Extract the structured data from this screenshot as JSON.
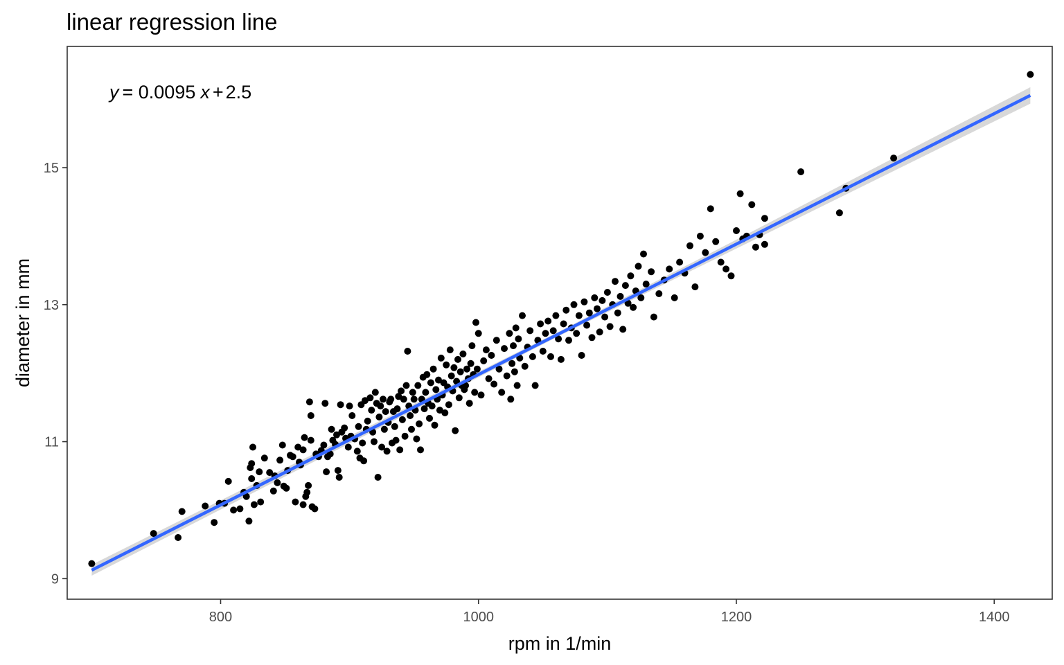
{
  "chart_data": {
    "type": "scatter",
    "title": "linear regression line",
    "xlabel": "rpm in 1/min",
    "ylabel": "diameter in mm",
    "xlim": [
      681,
      1445
    ],
    "ylim": [
      8.7,
      16.77
    ],
    "xticks": [
      800,
      1000,
      1200,
      1400
    ],
    "yticks": [
      9,
      11,
      13,
      15
    ],
    "grid": false,
    "annotation": {
      "var": "y",
      "equals": "= 0.0095",
      "xvar": "x",
      "plus": "+",
      "intercept": "2.5"
    },
    "regression": {
      "slope": 0.00952,
      "intercept": 2.46,
      "x_range": [
        700,
        1428
      ],
      "se_band": 0.08,
      "color": "#3366ff"
    },
    "point_color": "#000000",
    "points": [
      [
        700,
        9.22
      ],
      [
        748,
        9.66
      ],
      [
        767,
        9.6
      ],
      [
        770,
        9.98
      ],
      [
        788,
        10.06
      ],
      [
        795,
        9.82
      ],
      [
        799,
        10.1
      ],
      [
        803,
        10.1
      ],
      [
        806,
        10.42
      ],
      [
        810,
        10.0
      ],
      [
        815,
        10.02
      ],
      [
        818,
        10.26
      ],
      [
        820,
        10.2
      ],
      [
        822,
        9.84
      ],
      [
        823,
        10.62
      ],
      [
        824,
        10.46
      ],
      [
        824,
        10.68
      ],
      [
        825,
        10.92
      ],
      [
        826,
        10.08
      ],
      [
        828,
        10.36
      ],
      [
        830,
        10.56
      ],
      [
        831,
        10.12
      ],
      [
        834,
        10.76
      ],
      [
        838,
        10.55
      ],
      [
        841,
        10.28
      ],
      [
        842,
        10.5
      ],
      [
        844,
        10.4
      ],
      [
        846,
        10.73
      ],
      [
        848,
        10.95
      ],
      [
        849,
        10.35
      ],
      [
        851,
        10.32
      ],
      [
        852,
        10.58
      ],
      [
        854,
        10.8
      ],
      [
        856,
        10.78
      ],
      [
        858,
        10.12
      ],
      [
        860,
        10.92
      ],
      [
        861,
        10.7
      ],
      [
        862,
        10.66
      ],
      [
        864,
        10.08
      ],
      [
        864,
        10.88
      ],
      [
        865,
        11.06
      ],
      [
        866,
        10.2
      ],
      [
        867,
        10.26
      ],
      [
        868,
        10.36
      ],
      [
        869,
        11.58
      ],
      [
        870,
        11.02
      ],
      [
        870,
        11.38
      ],
      [
        871,
        10.05
      ],
      [
        873,
        10.02
      ],
      [
        874,
        10.82
      ],
      [
        876,
        10.78
      ],
      [
        878,
        10.87
      ],
      [
        880,
        10.95
      ],
      [
        881,
        11.56
      ],
      [
        882,
        10.56
      ],
      [
        883,
        10.78
      ],
      [
        885,
        10.82
      ],
      [
        886,
        11.18
      ],
      [
        887,
        11.02
      ],
      [
        889,
        10.96
      ],
      [
        890,
        11.1
      ],
      [
        891,
        10.58
      ],
      [
        892,
        10.48
      ],
      [
        893,
        11.54
      ],
      [
        894,
        11.14
      ],
      [
        896,
        11.2
      ],
      [
        897,
        11.05
      ],
      [
        899,
        10.92
      ],
      [
        900,
        11.52
      ],
      [
        901,
        11.08
      ],
      [
        902,
        11.38
      ],
      [
        904,
        11.04
      ],
      [
        906,
        10.86
      ],
      [
        907,
        11.22
      ],
      [
        908,
        10.76
      ],
      [
        909,
        11.54
      ],
      [
        910,
        10.98
      ],
      [
        911,
        10.72
      ],
      [
        912,
        11.6
      ],
      [
        913,
        11.18
      ],
      [
        914,
        11.3
      ],
      [
        916,
        11.64
      ],
      [
        917,
        11.46
      ],
      [
        918,
        11.14
      ],
      [
        919,
        11.0
      ],
      [
        920,
        11.72
      ],
      [
        921,
        11.56
      ],
      [
        922,
        10.48
      ],
      [
        923,
        11.36
      ],
      [
        924,
        11.52
      ],
      [
        925,
        10.92
      ],
      [
        926,
        11.62
      ],
      [
        927,
        11.18
      ],
      [
        928,
        11.44
      ],
      [
        929,
        10.86
      ],
      [
        930,
        11.28
      ],
      [
        931,
        11.58
      ],
      [
        932,
        11.62
      ],
      [
        933,
        10.98
      ],
      [
        934,
        11.44
      ],
      [
        935,
        11.22
      ],
      [
        936,
        11.02
      ],
      [
        937,
        11.48
      ],
      [
        938,
        11.66
      ],
      [
        939,
        10.88
      ],
      [
        940,
        11.74
      ],
      [
        941,
        11.32
      ],
      [
        942,
        11.62
      ],
      [
        943,
        11.08
      ],
      [
        944,
        11.82
      ],
      [
        945,
        12.32
      ],
      [
        946,
        11.52
      ],
      [
        947,
        11.38
      ],
      [
        948,
        11.18
      ],
      [
        949,
        11.72
      ],
      [
        950,
        11.62
      ],
      [
        951,
        11.46
      ],
      [
        952,
        11.04
      ],
      [
        953,
        11.82
      ],
      [
        954,
        11.26
      ],
      [
        955,
        10.88
      ],
      [
        956,
        11.62
      ],
      [
        957,
        11.94
      ],
      [
        958,
        11.48
      ],
      [
        959,
        11.72
      ],
      [
        960,
        11.98
      ],
      [
        961,
        11.56
      ],
      [
        962,
        11.34
      ],
      [
        963,
        11.86
      ],
      [
        964,
        11.52
      ],
      [
        965,
        12.06
      ],
      [
        966,
        11.24
      ],
      [
        967,
        11.76
      ],
      [
        968,
        11.62
      ],
      [
        969,
        11.9
      ],
      [
        970,
        11.46
      ],
      [
        971,
        12.22
      ],
      [
        972,
        11.68
      ],
      [
        973,
        11.86
      ],
      [
        974,
        11.42
      ],
      [
        975,
        12.12
      ],
      [
        976,
        11.8
      ],
      [
        977,
        11.54
      ],
      [
        978,
        12.34
      ],
      [
        979,
        11.96
      ],
      [
        980,
        11.74
      ],
      [
        981,
        12.08
      ],
      [
        982,
        11.16
      ],
      [
        983,
        11.88
      ],
      [
        984,
        12.2
      ],
      [
        985,
        11.64
      ],
      [
        986,
        12.02
      ],
      [
        987,
        11.82
      ],
      [
        988,
        12.28
      ],
      [
        989,
        11.76
      ],
      [
        990,
        11.82
      ],
      [
        991,
        12.06
      ],
      [
        992,
        11.92
      ],
      [
        993,
        11.56
      ],
      [
        994,
        12.14
      ],
      [
        995,
        12.4
      ],
      [
        996,
        11.98
      ],
      [
        997,
        11.72
      ],
      [
        998,
        12.74
      ],
      [
        999,
        12.06
      ],
      [
        1000,
        12.58
      ],
      [
        1002,
        11.68
      ],
      [
        1004,
        12.18
      ],
      [
        1006,
        12.34
      ],
      [
        1008,
        11.92
      ],
      [
        1010,
        12.26
      ],
      [
        1012,
        11.84
      ],
      [
        1014,
        12.48
      ],
      [
        1016,
        12.06
      ],
      [
        1018,
        11.72
      ],
      [
        1020,
        12.36
      ],
      [
        1022,
        11.96
      ],
      [
        1024,
        12.58
      ],
      [
        1025,
        11.62
      ],
      [
        1026,
        12.14
      ],
      [
        1027,
        12.4
      ],
      [
        1028,
        12.02
      ],
      [
        1029,
        12.66
      ],
      [
        1030,
        11.82
      ],
      [
        1031,
        12.5
      ],
      [
        1032,
        12.22
      ],
      [
        1034,
        12.84
      ],
      [
        1036,
        12.1
      ],
      [
        1038,
        12.38
      ],
      [
        1040,
        12.62
      ],
      [
        1042,
        12.24
      ],
      [
        1044,
        11.82
      ],
      [
        1046,
        12.48
      ],
      [
        1048,
        12.72
      ],
      [
        1050,
        12.32
      ],
      [
        1052,
        12.58
      ],
      [
        1054,
        12.76
      ],
      [
        1056,
        12.24
      ],
      [
        1058,
        12.62
      ],
      [
        1060,
        12.84
      ],
      [
        1062,
        12.5
      ],
      [
        1064,
        12.2
      ],
      [
        1066,
        12.72
      ],
      [
        1068,
        12.92
      ],
      [
        1070,
        12.48
      ],
      [
        1072,
        12.66
      ],
      [
        1074,
        13.0
      ],
      [
        1076,
        12.58
      ],
      [
        1078,
        12.84
      ],
      [
        1080,
        12.26
      ],
      [
        1082,
        13.04
      ],
      [
        1084,
        12.7
      ],
      [
        1086,
        12.88
      ],
      [
        1088,
        12.52
      ],
      [
        1090,
        13.1
      ],
      [
        1092,
        12.94
      ],
      [
        1094,
        12.6
      ],
      [
        1096,
        13.06
      ],
      [
        1098,
        12.82
      ],
      [
        1100,
        13.18
      ],
      [
        1102,
        12.68
      ],
      [
        1104,
        13.0
      ],
      [
        1106,
        13.34
      ],
      [
        1108,
        12.88
      ],
      [
        1110,
        13.12
      ],
      [
        1112,
        12.64
      ],
      [
        1114,
        13.28
      ],
      [
        1116,
        13.02
      ],
      [
        1118,
        13.42
      ],
      [
        1120,
        12.96
      ],
      [
        1122,
        13.2
      ],
      [
        1124,
        13.56
      ],
      [
        1126,
        13.1
      ],
      [
        1128,
        13.74
      ],
      [
        1130,
        13.3
      ],
      [
        1134,
        13.48
      ],
      [
        1136,
        12.82
      ],
      [
        1140,
        13.16
      ],
      [
        1144,
        13.36
      ],
      [
        1148,
        13.52
      ],
      [
        1152,
        13.1
      ],
      [
        1156,
        13.62
      ],
      [
        1160,
        13.46
      ],
      [
        1164,
        13.86
      ],
      [
        1168,
        13.26
      ],
      [
        1172,
        14.0
      ],
      [
        1176,
        13.76
      ],
      [
        1180,
        14.4
      ],
      [
        1184,
        13.92
      ],
      [
        1188,
        13.62
      ],
      [
        1192,
        13.52
      ],
      [
        1196,
        13.42
      ],
      [
        1200,
        14.08
      ],
      [
        1203,
        14.62
      ],
      [
        1205,
        13.96
      ],
      [
        1208,
        14.0
      ],
      [
        1212,
        14.46
      ],
      [
        1215,
        13.84
      ],
      [
        1218,
        14.02
      ],
      [
        1222,
        14.26
      ],
      [
        1222,
        13.88
      ],
      [
        1250,
        14.94
      ],
      [
        1280,
        14.34
      ],
      [
        1285,
        14.7
      ],
      [
        1322,
        15.14
      ],
      [
        1428,
        16.36
      ]
    ]
  }
}
